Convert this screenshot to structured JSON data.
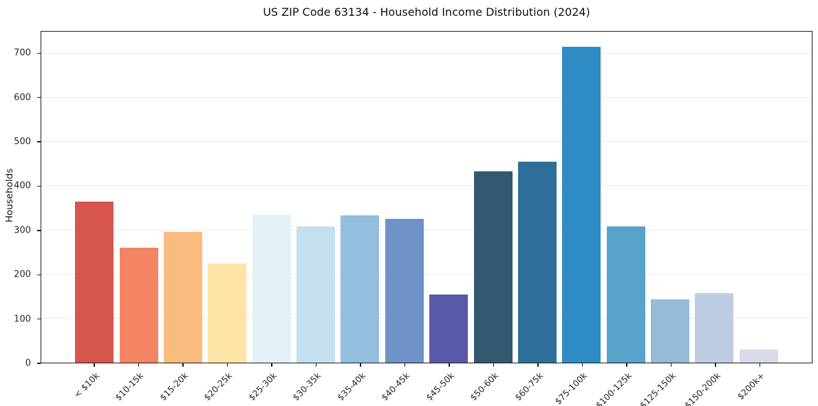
{
  "chart_data": {
    "type": "bar",
    "title": "US ZIP Code 63134 - Household Income Distribution (2024)",
    "xlabel": "",
    "ylabel": "Households",
    "categories": [
      "< $10k",
      "$10-15k",
      "$15-20k",
      "$20-25k",
      "$25-30k",
      "$30-35k",
      "$35-40k",
      "$40-45k",
      "$45-50k",
      "$50-60k",
      "$60-75k",
      "$75-100k",
      "$100-125k",
      "$125-150k",
      "$150-200k",
      "$200k+"
    ],
    "values": [
      365,
      261,
      296,
      224,
      336,
      308,
      333,
      326,
      154,
      433,
      455,
      716,
      309,
      143,
      157,
      30
    ],
    "bar_colors": [
      "#d6564e",
      "#f38564",
      "#fabc7e",
      "#fce4a6",
      "#e4f1f7",
      "#c4e0ee",
      "#94bedd",
      "#6f93c8",
      "#5a58a8",
      "#33596e",
      "#2e6f99",
      "#2e8bc4",
      "#58a3c9",
      "#96bbd9",
      "#bfcde2",
      "#d9dae8"
    ],
    "yticks": [
      0,
      100,
      200,
      300,
      400,
      500,
      600,
      700
    ],
    "ylim": [
      0,
      750
    ],
    "grid": "horizontal",
    "legend": "none",
    "x_tick_rotation_deg": 45
  }
}
